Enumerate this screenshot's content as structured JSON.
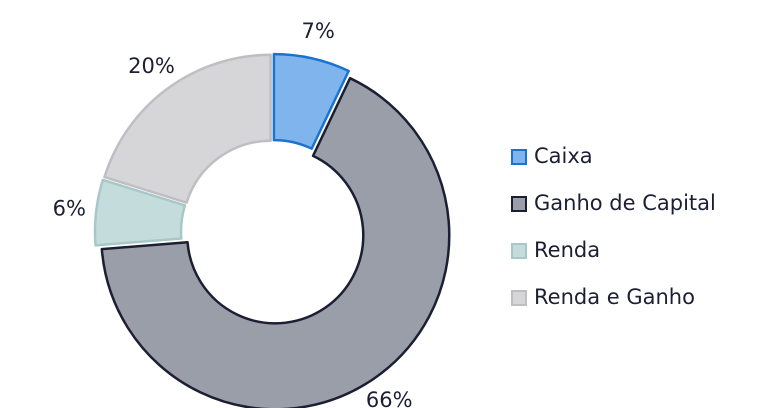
{
  "chart_data": {
    "type": "pie",
    "categories": [
      "Caixa",
      "Ganho de Capital",
      "Renda",
      "Renda e Ganho"
    ],
    "values": [
      7,
      66,
      6,
      20
    ],
    "value_labels": [
      "7%",
      "66%",
      "6%",
      "20%"
    ],
    "colors": [
      "#7fb5ec",
      "#9a9ea8",
      "#c5dcdc",
      "#d6d5d8"
    ],
    "stroke_colors": [
      "#1a73d0",
      "#1c1f33",
      "#a8c8c8",
      "#bfbec3"
    ],
    "donut": true,
    "legend": "right"
  }
}
